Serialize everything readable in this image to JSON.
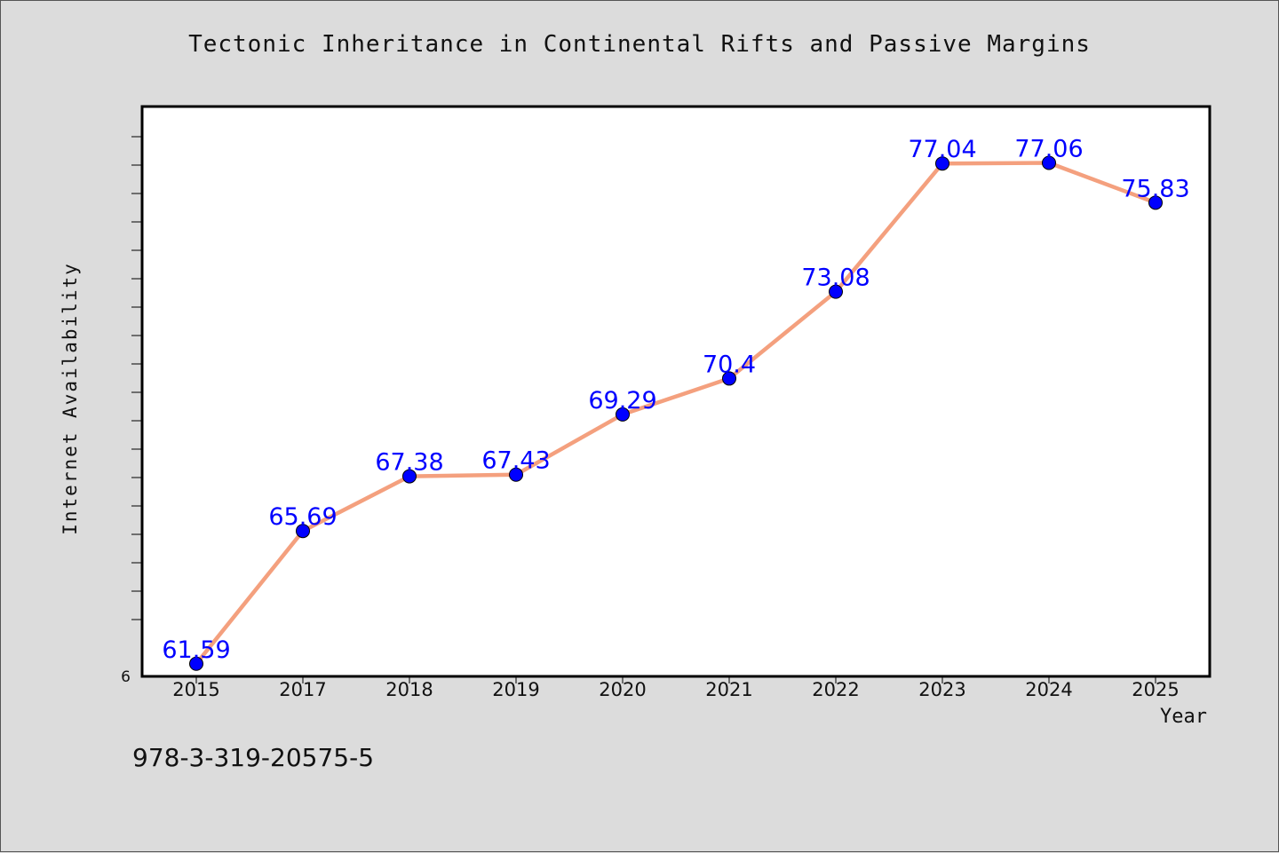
{
  "chart_data": {
    "type": "line",
    "title": "Tectonic Inheritance in Continental Rifts and Passive Margins",
    "xlabel": "Year",
    "ylabel": "Internet Availability",
    "categories": [
      "2015",
      "2017",
      "2018",
      "2019",
      "2020",
      "2021",
      "2022",
      "2023",
      "2024",
      "2025"
    ],
    "series": [
      {
        "values": [
          61.59,
          65.69,
          67.38,
          67.43,
          69.29,
          70.4,
          73.08,
          77.04,
          77.06,
          75.83
        ],
        "data_labels": [
          "61.59",
          "65.69",
          "67.38",
          "67.43",
          "69.29",
          "70.4",
          "73.08",
          "77.04",
          "77.06",
          "75.83"
        ]
      }
    ],
    "y_tick_labels": [
      "6"
    ],
    "ylim": [
      61.2,
      78.8
    ],
    "grid": false,
    "colors": {
      "line": "#f4a07e",
      "marker": "#0000ff",
      "label": "#0000ff"
    }
  },
  "footer": {
    "isbn": "978-3-319-20575-5"
  }
}
